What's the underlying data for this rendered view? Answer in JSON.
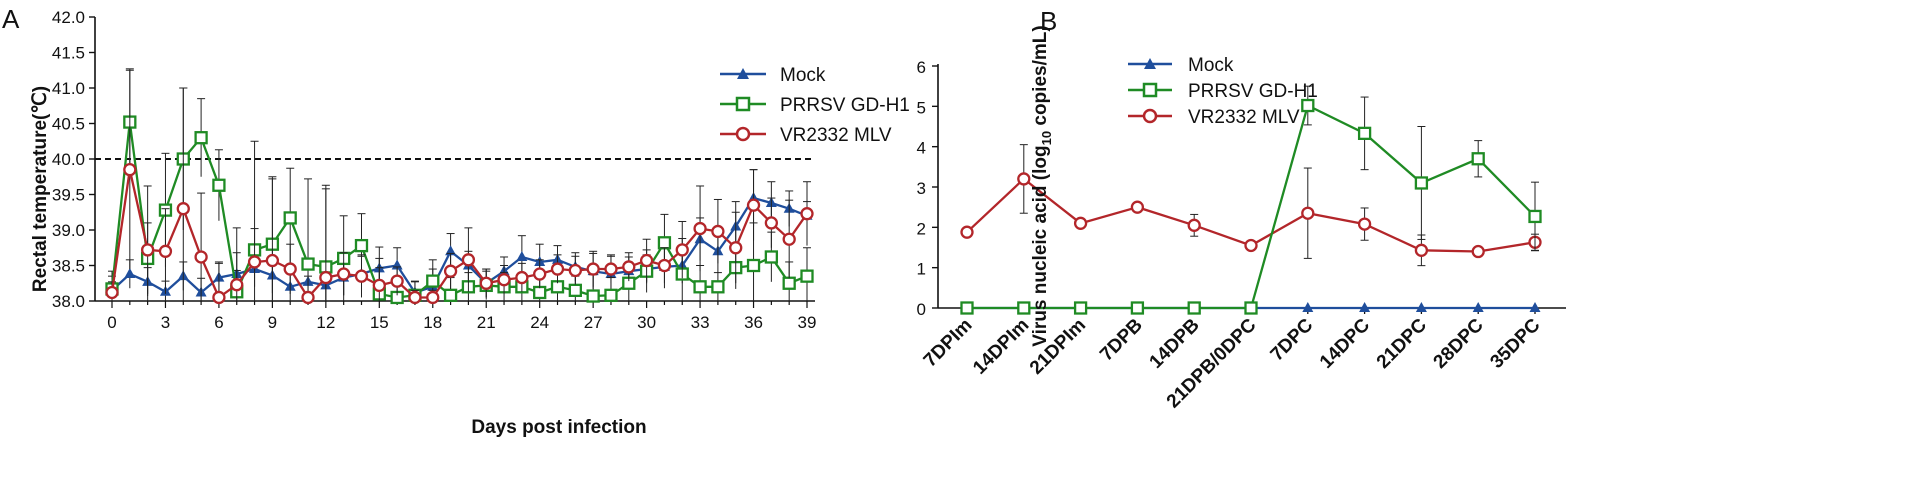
{
  "panels": {
    "a": "A",
    "b": "B"
  },
  "colors": {
    "mock": "#1f4e9c",
    "prrsv": "#1f8b24",
    "vr": "#b3262a"
  },
  "chart_data": [
    {
      "type": "line",
      "title": "",
      "xlabel": "Days post infection",
      "ylabel": "Rectal temperature(℃)",
      "ylim": [
        38.0,
        42.0
      ],
      "xlim": [
        0,
        39
      ],
      "yticks": [
        38.0,
        38.5,
        39.0,
        39.5,
        40.0,
        40.5,
        41.0,
        41.5,
        42.0
      ],
      "ytick_labels": [
        "38.0",
        "38.5",
        "39.0",
        "39.5",
        "40.0",
        "40.5",
        "41.0",
        "41.5",
        "42.0"
      ],
      "xticks": [
        0,
        3,
        6,
        9,
        12,
        15,
        18,
        21,
        24,
        27,
        30,
        33,
        36,
        39
      ],
      "xtick_labels": [
        "0",
        "3",
        "6",
        "9",
        "12",
        "15",
        "18",
        "21",
        "24",
        "27",
        "30",
        "33",
        "36",
        "39"
      ],
      "threshold": 40.0,
      "legend": [
        "Mock",
        "PRRSV GD-H1",
        "VR2332 MLV"
      ],
      "legend_position": "top-right",
      "series": [
        {
          "name": "Mock",
          "marker": "triangle",
          "x": [
            0,
            1,
            2,
            3,
            4,
            5,
            6,
            7,
            8,
            9,
            10,
            11,
            12,
            13,
            14,
            15,
            16,
            17,
            18,
            19,
            20,
            21,
            22,
            23,
            24,
            25,
            26,
            27,
            28,
            29,
            30,
            31,
            32,
            33,
            34,
            35,
            36,
            37,
            38,
            39
          ],
          "values": [
            38.15,
            38.38,
            38.27,
            38.13,
            38.35,
            38.12,
            38.33,
            38.38,
            38.45,
            38.36,
            38.2,
            38.27,
            38.22,
            38.33,
            38.38,
            38.46,
            38.5,
            38.12,
            38.2,
            38.7,
            38.5,
            38.25,
            38.42,
            38.62,
            38.55,
            38.58,
            38.48,
            38.42,
            38.38,
            38.42,
            38.45,
            38.48,
            38.5,
            38.87,
            38.7,
            39.05,
            39.45,
            39.38,
            39.3,
            39.2
          ],
          "err": [
            0.2,
            0.2,
            0.2,
            0.15,
            0.2,
            0.2,
            0.2,
            0.3,
            0.25,
            0.25,
            0.2,
            0.3,
            0.25,
            0.25,
            0.25,
            0.3,
            0.25,
            0.15,
            0.25,
            0.25,
            0.2,
            0.2,
            0.2,
            0.3,
            0.25,
            0.2,
            0.2,
            0.25,
            0.25,
            0.2,
            0.2,
            0.3,
            0.25,
            0.3,
            0.3,
            0.35,
            0.4,
            0.3,
            0.25,
            0.2
          ]
        },
        {
          "name": "PRRSV GD-H1",
          "marker": "square",
          "x": [
            0,
            1,
            2,
            3,
            4,
            5,
            6,
            7,
            8,
            9,
            10,
            11,
            12,
            13,
            14,
            15,
            16,
            17,
            18,
            19,
            20,
            21,
            22,
            23,
            24,
            25,
            26,
            27,
            28,
            29,
            30,
            31,
            32,
            33,
            34,
            35,
            36,
            37,
            38,
            39
          ],
          "values": [
            38.17,
            40.52,
            38.6,
            39.28,
            40.0,
            40.3,
            39.63,
            38.13,
            38.72,
            38.8,
            39.17,
            38.52,
            38.48,
            38.6,
            38.78,
            38.1,
            38.05,
            38.08,
            38.28,
            38.08,
            38.2,
            38.22,
            38.2,
            38.2,
            38.12,
            38.2,
            38.15,
            38.07,
            38.08,
            38.25,
            38.42,
            38.82,
            38.38,
            38.2,
            38.2,
            38.47,
            38.5,
            38.62,
            38.25,
            38.35
          ],
          "err": [
            0.25,
            0.75,
            0.5,
            0.8,
            1.0,
            0.55,
            0.5,
            0.3,
            0.3,
            0.95,
            0.7,
            1.2,
            1.1,
            0.6,
            0.45,
            0.5,
            0.3,
            0.2,
            0.3,
            0.25,
            0.2,
            0.2,
            0.2,
            0.2,
            0.2,
            0.2,
            0.2,
            0.3,
            0.25,
            0.3,
            0.3,
            0.4,
            0.5,
            0.3,
            0.2,
            0.3,
            0.6,
            0.35,
            0.3,
            0.4
          ]
        },
        {
          "name": "VR2332 MLV",
          "marker": "circle",
          "x": [
            0,
            1,
            2,
            3,
            4,
            5,
            6,
            7,
            8,
            9,
            10,
            11,
            12,
            13,
            14,
            15,
            16,
            17,
            18,
            19,
            20,
            21,
            22,
            23,
            24,
            25,
            26,
            27,
            28,
            29,
            30,
            31,
            32,
            33,
            34,
            35,
            36,
            37,
            38,
            39
          ],
          "values": [
            38.12,
            39.85,
            38.72,
            38.7,
            39.3,
            38.62,
            38.05,
            38.23,
            38.55,
            38.57,
            38.45,
            38.05,
            38.33,
            38.38,
            38.35,
            38.22,
            38.28,
            38.05,
            38.05,
            38.42,
            38.58,
            38.25,
            38.3,
            38.33,
            38.38,
            38.45,
            38.43,
            38.45,
            38.45,
            38.48,
            38.57,
            38.5,
            38.72,
            39.02,
            38.98,
            38.75,
            39.35,
            39.1,
            38.87,
            39.23
          ],
          "err": [
            0.15,
            1.4,
            0.9,
            0.6,
            1.7,
            0.9,
            0.5,
            0.8,
            1.7,
            1.15,
            0.35,
            0.3,
            1.3,
            0.3,
            0.3,
            0.25,
            0.2,
            0.1,
            0.1,
            0.25,
            0.45,
            0.2,
            0.2,
            0.2,
            0.2,
            0.2,
            0.2,
            0.25,
            0.2,
            0.2,
            0.3,
            0.25,
            0.4,
            0.6,
            0.45,
            0.5,
            0.5,
            0.35,
            0.55,
            0.45
          ]
        }
      ]
    },
    {
      "type": "line",
      "title": "",
      "xlabel": "",
      "ylabel": "Virus nucleic acid",
      "ylabel_unit": "log10 copies/mL",
      "ylabel_unit_base": "log",
      "ylabel_unit_sub": "10",
      "ylabel_unit_rest": " copies/mL)",
      "ylim": [
        0,
        6
      ],
      "yticks": [
        0,
        1,
        2,
        3,
        4,
        5,
        6
      ],
      "ytick_labels": [
        "0",
        "1",
        "2",
        "3",
        "4",
        "5",
        "6"
      ],
      "categories": [
        "7DPIm",
        "14DPIm",
        "21DPIm",
        "7DPB",
        "14DPB",
        "21DPB/0DPC",
        "7DPC",
        "14DPC",
        "21DPC",
        "28DPC",
        "35DPC"
      ],
      "legend": [
        "Mock",
        "PRRSV GD-H1",
        "VR2332 MLV"
      ],
      "legend_position": "top-left",
      "series": [
        {
          "name": "Mock",
          "marker": "triangle",
          "values": [
            0,
            0,
            0,
            0,
            0,
            0,
            0,
            0,
            0,
            0,
            0
          ],
          "err": [
            0,
            0,
            0,
            0,
            0,
            0,
            0,
            0,
            0,
            0,
            0
          ]
        },
        {
          "name": "PRRSV GD-H1",
          "marker": "square",
          "values": [
            0,
            0,
            0,
            0,
            0,
            0,
            5.02,
            4.33,
            3.1,
            3.7,
            2.27
          ],
          "err": [
            0,
            0,
            0,
            0,
            0,
            0,
            0.48,
            0.9,
            1.4,
            0.45,
            0.85
          ]
        },
        {
          "name": "VR2332 MLV",
          "marker": "circle",
          "values": [
            1.88,
            3.2,
            2.1,
            2.5,
            2.05,
            1.55,
            2.35,
            2.08,
            1.43,
            1.4,
            1.63
          ],
          "err": [
            0,
            0.85,
            0,
            0,
            0.27,
            0,
            1.12,
            0.4,
            0.38,
            0,
            0.2
          ]
        }
      ]
    }
  ]
}
